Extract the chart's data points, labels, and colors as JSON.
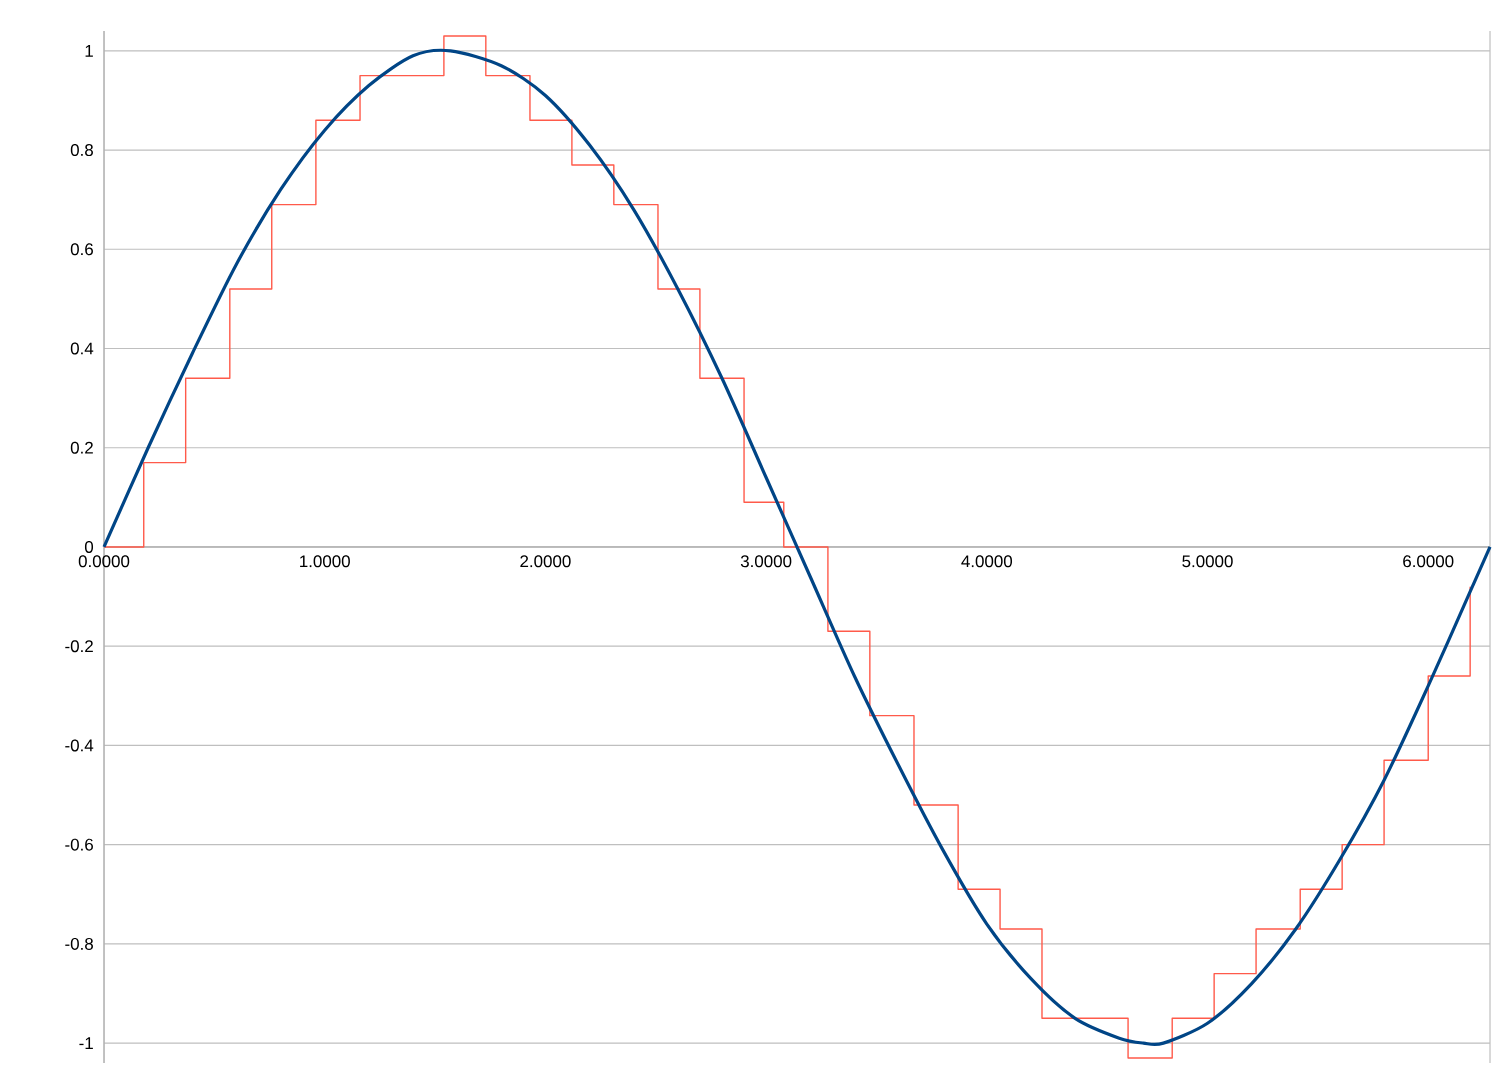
{
  "chart_data": {
    "type": "line",
    "xlim": [
      0,
      6.28
    ],
    "ylim": [
      -1.04,
      1.04
    ],
    "xticks": [
      {
        "value": 0,
        "label": "0.0000"
      },
      {
        "value": 1,
        "label": "1.0000"
      },
      {
        "value": 2,
        "label": "2.0000"
      },
      {
        "value": 3,
        "label": "3.0000"
      },
      {
        "value": 4,
        "label": "4.0000"
      },
      {
        "value": 5,
        "label": "5.0000"
      },
      {
        "value": 6,
        "label": "6.0000"
      }
    ],
    "yticks": [
      -1,
      -0.8,
      -0.6,
      -0.4,
      -0.2,
      0,
      0.2,
      0.4,
      0.6,
      0.8,
      1
    ],
    "grid": "y",
    "series": [
      {
        "type": "step",
        "color": "#ff5a4a",
        "x": [
          0,
          0.18,
          0.37,
          0.57,
          0.76,
          0.96,
          1.16,
          1.54,
          1.73,
          1.93,
          2.12,
          2.31,
          2.51,
          2.7,
          2.9,
          3.08,
          3.28,
          3.47,
          3.67,
          3.87,
          4.06,
          4.25,
          4.64,
          4.84,
          5.03,
          5.22,
          5.42,
          5.61,
          5.8,
          6.0,
          6.19
        ],
        "values": [
          0,
          0.17,
          0.34,
          0.52,
          0.69,
          0.86,
          0.95,
          1.03,
          0.95,
          0.86,
          0.77,
          0.69,
          0.52,
          0.34,
          0.09,
          0,
          -0.17,
          -0.34,
          -0.52,
          -0.69,
          -0.77,
          -0.95,
          -1.03,
          -0.95,
          -0.86,
          -0.77,
          -0.69,
          -0.6,
          -0.43,
          -0.26,
          -0.08
        ]
      },
      {
        "color": "#004586",
        "x": [
          0,
          0.2,
          0.4,
          0.6,
          0.8,
          1.0,
          1.2,
          1.4,
          1.57,
          1.8,
          2.0,
          2.2,
          2.4,
          2.6,
          2.8,
          3.0,
          3.2,
          3.4,
          3.6,
          3.8,
          4.0,
          4.2,
          4.4,
          4.6,
          4.71,
          4.8,
          5.0,
          5.2,
          5.4,
          5.6,
          5.8,
          6.0,
          6.2,
          6.28
        ],
        "values": [
          0,
          0.2,
          0.39,
          0.57,
          0.72,
          0.84,
          0.93,
          0.99,
          1.0,
          0.97,
          0.91,
          0.81,
          0.68,
          0.52,
          0.34,
          0.14,
          -0.06,
          -0.26,
          -0.44,
          -0.61,
          -0.76,
          -0.87,
          -0.95,
          -0.99,
          -1.0,
          -1.0,
          -0.96,
          -0.88,
          -0.77,
          -0.63,
          -0.47,
          -0.28,
          -0.08,
          0
        ]
      }
    ]
  }
}
